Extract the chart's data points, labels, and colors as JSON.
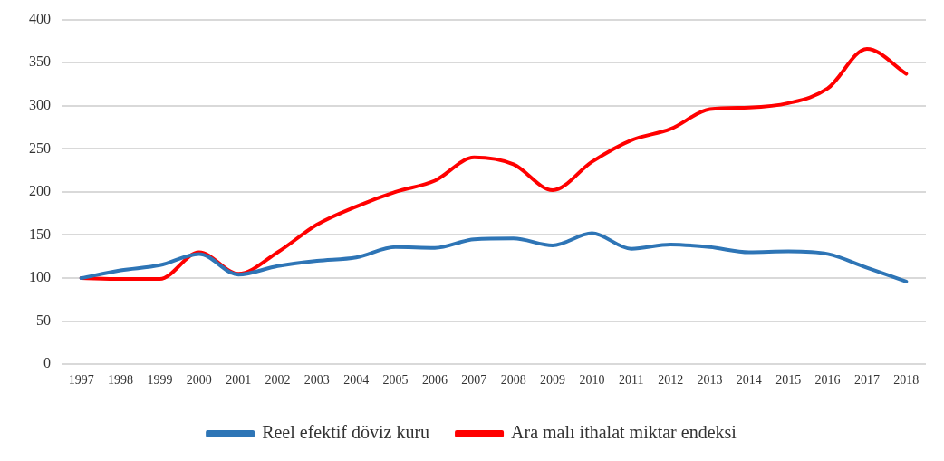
{
  "chart_data": {
    "type": "line",
    "categories": [
      "1997",
      "1998",
      "1999",
      "2000",
      "2001",
      "2002",
      "2003",
      "2004",
      "2005",
      "2006",
      "2007",
      "2008",
      "2009",
      "2010",
      "2011",
      "2012",
      "2013",
      "2014",
      "2015",
      "2016",
      "2017",
      "2018"
    ],
    "series": [
      {
        "name": "Reel efektif döviz kuru",
        "color": "#2e75b6",
        "values": [
          100,
          109,
          115,
          128,
          104,
          114,
          120,
          124,
          136,
          135,
          145,
          146,
          138,
          152,
          134,
          139,
          136,
          130,
          131,
          128,
          112,
          96
        ]
      },
      {
        "name": "Ara malı ithalat miktar endeksi",
        "color": "#ff0000",
        "values": [
          100,
          99,
          99,
          130,
          105,
          130,
          162,
          183,
          200,
          213,
          240,
          232,
          202,
          235,
          260,
          273,
          296,
          298,
          303,
          320,
          366,
          337
        ]
      }
    ],
    "ylim": [
      0,
      400
    ],
    "yticks": [
      0,
      50,
      100,
      150,
      200,
      250,
      300,
      350,
      400
    ],
    "grid": "y",
    "legend": "bottom",
    "marker": "none",
    "line_style": "solid"
  }
}
